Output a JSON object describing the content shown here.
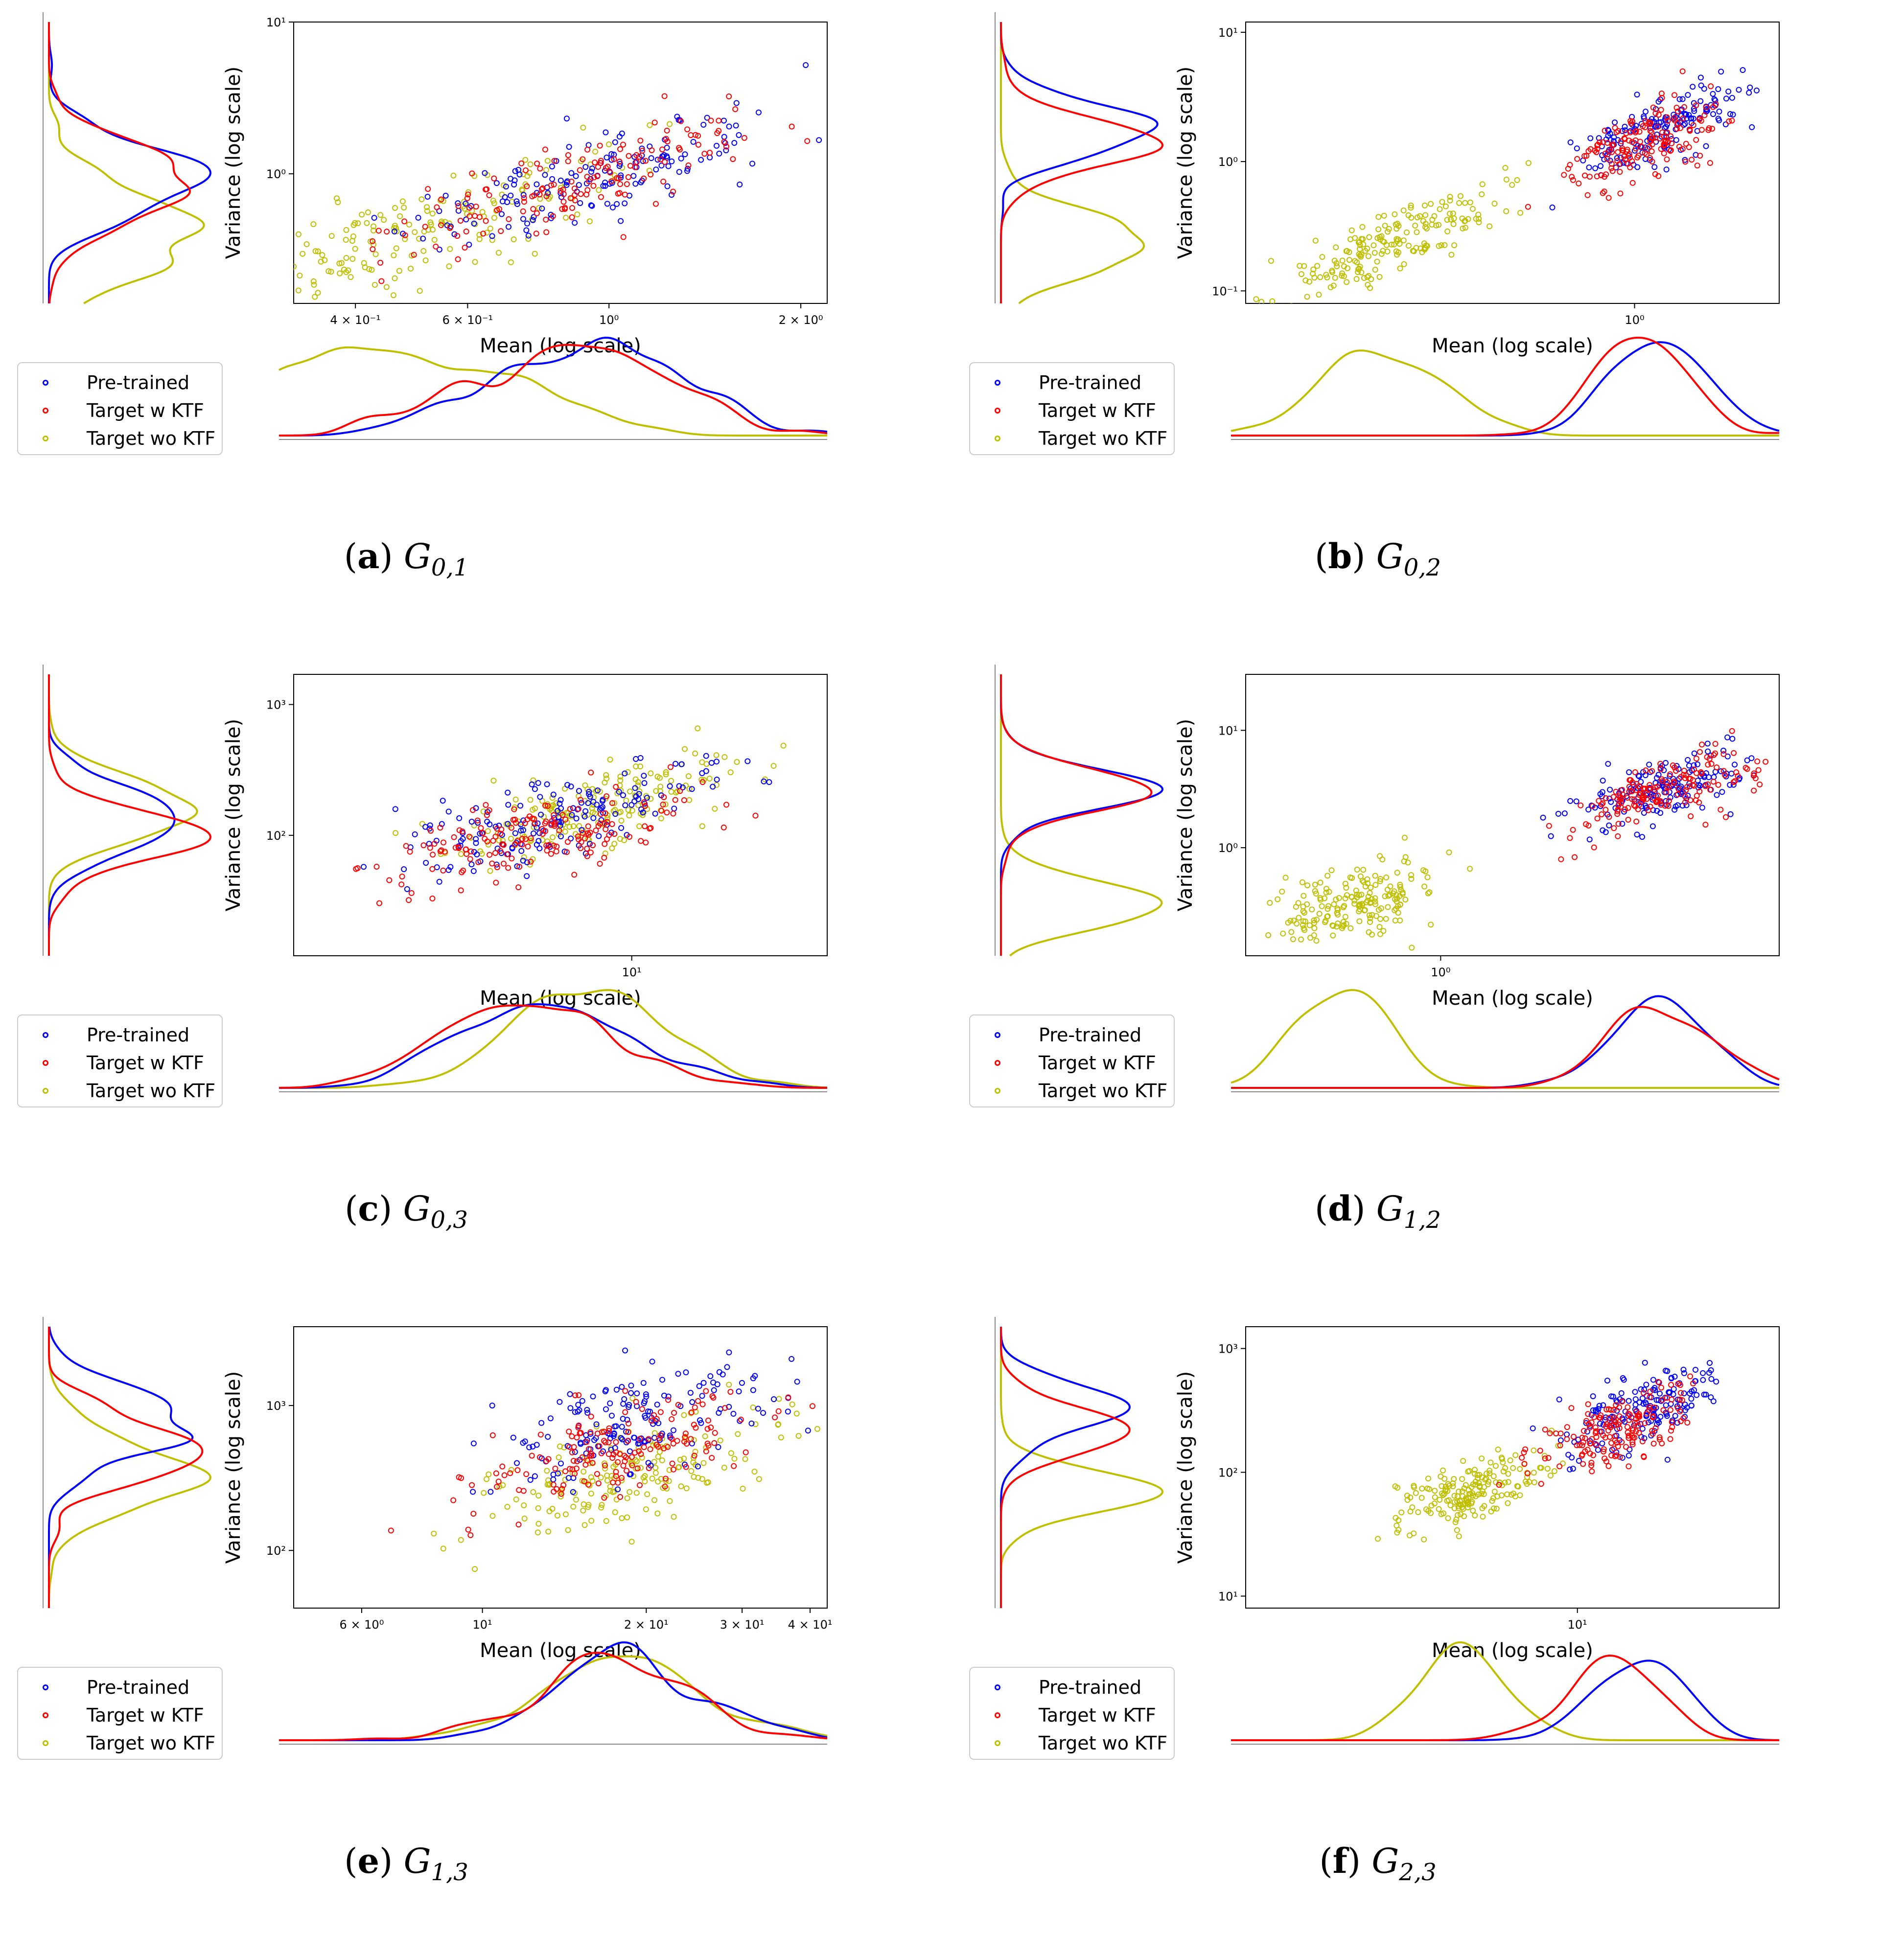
{
  "colors": {
    "pretrained": "#0000ff",
    "target_w_ktf": "#ff0000",
    "target_wo_ktf": "#bfbf00"
  },
  "chart_data": [
    {
      "type": "scatter",
      "id": "a",
      "caption_letter": "a",
      "caption_label": "G",
      "caption_sub": "0,1",
      "xlabel": "Mean (log scale)",
      "ylabel": "Variance (log scale)",
      "xscale": "log",
      "yscale": "log",
      "xlim": [
        0.32,
        2.2
      ],
      "ylim": [
        0.14,
        10
      ],
      "xticks": [
        {
          "v": 0.4,
          "label": "4 × 10⁻¹"
        },
        {
          "v": 0.6,
          "label": "6 × 10⁻¹"
        },
        {
          "v": 1,
          "label": "10⁰"
        },
        {
          "v": 2,
          "label": "2 × 10⁰"
        }
      ],
      "yticks": [
        {
          "v": 1,
          "label": "10⁰"
        },
        {
          "v": 10,
          "label": "10¹"
        }
      ],
      "legend": [
        "Pre-trained",
        "Target w KTF",
        "Target wo KTF"
      ],
      "series": [
        {
          "name": "Pre-trained",
          "center": [
            0.95,
            0.95
          ],
          "spread": [
            0.15,
            0.22
          ],
          "corr": 0.8,
          "n": 160
        },
        {
          "name": "Target w KTF",
          "center": [
            0.95,
            0.95
          ],
          "spread": [
            0.15,
            0.22
          ],
          "corr": 0.8,
          "n": 160
        },
        {
          "name": "Target wo KTF",
          "center": [
            0.5,
            0.42
          ],
          "spread": [
            0.17,
            0.26
          ],
          "corr": 0.8,
          "n": 190
        }
      ]
    },
    {
      "type": "scatter",
      "id": "b",
      "caption_letter": "b",
      "caption_label": "G",
      "caption_sub": "0,2",
      "xlabel": "Mean (log scale)",
      "ylabel": "Variance (log scale)",
      "xscale": "log",
      "yscale": "log",
      "xlim": [
        0.12,
        2.2
      ],
      "ylim": [
        0.08,
        12
      ],
      "xticks": [
        {
          "v": 1,
          "label": "10⁰"
        }
      ],
      "yticks": [
        {
          "v": 0.1,
          "label": "10⁻¹"
        },
        {
          "v": 1,
          "label": "10⁰"
        },
        {
          "v": 10,
          "label": "10¹"
        }
      ],
      "legend": [
        "Pre-trained",
        "Target w KTF",
        "Target wo KTF"
      ],
      "series": [
        {
          "name": "Pre-trained",
          "center": [
            1.15,
            1.8
          ],
          "spread": [
            0.1,
            0.18
          ],
          "corr": 0.7,
          "n": 170
        },
        {
          "name": "Target w KTF",
          "center": [
            1.05,
            1.4
          ],
          "spread": [
            0.1,
            0.18
          ],
          "corr": 0.7,
          "n": 170
        },
        {
          "name": "Target wo KTF",
          "center": [
            0.27,
            0.24
          ],
          "spread": [
            0.14,
            0.22
          ],
          "corr": 0.85,
          "n": 190
        }
      ]
    },
    {
      "type": "scatter",
      "id": "c",
      "caption_letter": "c",
      "caption_label": "G",
      "caption_sub": "0,3",
      "xlabel": "Mean (log scale)",
      "ylabel": "Variance (log scale)",
      "xscale": "log",
      "yscale": "log",
      "xlim": [
        2.2,
        24
      ],
      "ylim": [
        12,
        1700
      ],
      "xticks": [
        {
          "v": 10,
          "label": "10¹"
        }
      ],
      "yticks": [
        {
          "v": 100,
          "label": "10²"
        },
        {
          "v": 1000,
          "label": "10³"
        }
      ],
      "legend": [
        "Pre-trained",
        "Target w KTF",
        "Target wo KTF"
      ],
      "series": [
        {
          "name": "Pre-trained",
          "center": [
            6.8,
            130
          ],
          "spread": [
            0.16,
            0.2
          ],
          "corr": 0.6,
          "n": 170
        },
        {
          "name": "Target w KTF",
          "center": [
            6.5,
            95
          ],
          "spread": [
            0.16,
            0.2
          ],
          "corr": 0.6,
          "n": 170
        },
        {
          "name": "Target wo KTF",
          "center": [
            8.6,
            160
          ],
          "spread": [
            0.14,
            0.2
          ],
          "corr": 0.75,
          "n": 180
        }
      ]
    },
    {
      "type": "scatter",
      "id": "d",
      "caption_letter": "d",
      "caption_label": "G",
      "caption_sub": "1,2",
      "xlabel": "Mean (log scale)",
      "ylabel": "Variance (log scale)",
      "xscale": "log",
      "yscale": "log",
      "xlim": [
        0.45,
        4.0
      ],
      "ylim": [
        0.12,
        30
      ],
      "xticks": [
        {
          "v": 1,
          "label": "10⁰"
        }
      ],
      "yticks": [
        {
          "v": 1,
          "label": "10⁰"
        },
        {
          "v": 10,
          "label": "10¹"
        }
      ],
      "legend": [
        "Pre-trained",
        "Target w KTF",
        "Target wo KTF"
      ],
      "series": [
        {
          "name": "Pre-trained",
          "center": [
            2.5,
            3.3
          ],
          "spread": [
            0.08,
            0.17
          ],
          "corr": 0.6,
          "n": 170
        },
        {
          "name": "Target w KTF",
          "center": [
            2.45,
            2.9
          ],
          "spread": [
            0.08,
            0.17
          ],
          "corr": 0.6,
          "n": 170
        },
        {
          "name": "Target wo KTF",
          "center": [
            0.7,
            0.33
          ],
          "spread": [
            0.08,
            0.18
          ],
          "corr": 0.55,
          "n": 190
        }
      ]
    },
    {
      "type": "scatter",
      "id": "e",
      "caption_letter": "e",
      "caption_label": "G",
      "caption_sub": "1,3",
      "xlabel": "Mean (log scale)",
      "ylabel": "Variance (log scale)",
      "xscale": "log",
      "yscale": "log",
      "xlim": [
        4.5,
        43
      ],
      "ylim": [
        40,
        3500
      ],
      "xticks": [
        {
          "v": 6,
          "label": "6 × 10⁰"
        },
        {
          "v": 10,
          "label": "10¹"
        },
        {
          "v": 20,
          "label": "2 × 10¹"
        },
        {
          "v": 30,
          "label": "3 × 10¹"
        },
        {
          "v": 40,
          "label": "4 × 10¹"
        }
      ],
      "yticks": [
        {
          "v": 100,
          "label": "10²"
        },
        {
          "v": 1000,
          "label": "10³"
        }
      ],
      "legend": [
        "Pre-trained",
        "Target w KTF",
        "Target wo KTF"
      ],
      "series": [
        {
          "name": "Pre-trained",
          "center": [
            19,
            750
          ],
          "spread": [
            0.13,
            0.2
          ],
          "corr": 0.6,
          "n": 170
        },
        {
          "name": "Target w KTF",
          "center": [
            18,
            520
          ],
          "spread": [
            0.13,
            0.2
          ],
          "corr": 0.6,
          "n": 170
        },
        {
          "name": "Target wo KTF",
          "center": [
            18,
            330
          ],
          "spread": [
            0.13,
            0.2
          ],
          "corr": 0.6,
          "n": 180
        }
      ]
    },
    {
      "type": "scatter",
      "id": "f",
      "caption_letter": "f",
      "caption_label": "G",
      "caption_sub": "2,3",
      "xlabel": "Mean (log scale)",
      "ylabel": "Variance (log scale)",
      "xscale": "log",
      "yscale": "log",
      "xlim": [
        3.2,
        20
      ],
      "ylim": [
        8,
        1500
      ],
      "xticks": [
        {
          "v": 10,
          "label": "10¹"
        }
      ],
      "yticks": [
        {
          "v": 10,
          "label": "10¹"
        },
        {
          "v": 100,
          "label": "10²"
        },
        {
          "v": 1000,
          "label": "10³"
        }
      ],
      "legend": [
        "Pre-trained",
        "Target w KTF",
        "Target wo KTF"
      ],
      "series": [
        {
          "name": "Pre-trained",
          "center": [
            12.5,
            330
          ],
          "spread": [
            0.06,
            0.17
          ],
          "corr": 0.6,
          "n": 170
        },
        {
          "name": "Target w KTF",
          "center": [
            11.5,
            220
          ],
          "spread": [
            0.06,
            0.17
          ],
          "corr": 0.6,
          "n": 170
        },
        {
          "name": "Target wo KTF",
          "center": [
            6.9,
            70
          ],
          "spread": [
            0.06,
            0.15
          ],
          "corr": 0.6,
          "n": 190
        }
      ]
    }
  ]
}
